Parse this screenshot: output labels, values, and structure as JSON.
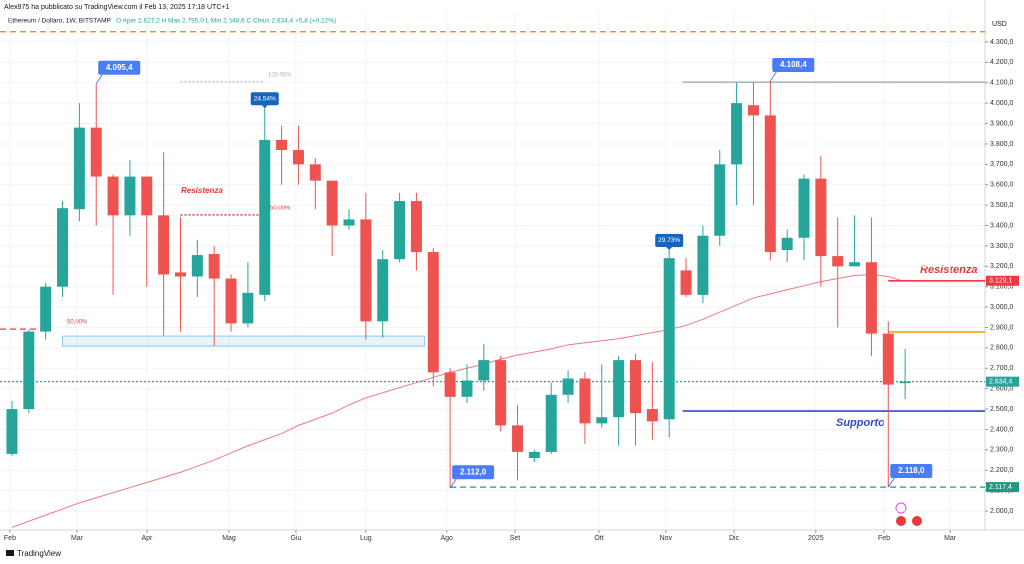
{
  "header": {
    "author": "Alex975 ha pubblicato su TradingView.com il Feb 13, 2025 17:18 UTC+1",
    "footer": "TradingView"
  },
  "chart_data": {
    "type": "candlestick",
    "title": "Ethereum / Dollaro, 1W, BITSTAMP",
    "subtitle": "O  Aper 2.627,2  H  Max 2.795,0  L  Min 2.548,6  C  Chius 2.634,4  +5,8 (+0,22%)",
    "y_unit": "USD",
    "x": [
      0,
      1,
      2,
      3,
      4,
      5,
      6,
      7,
      8,
      9,
      10,
      11,
      12,
      13,
      14,
      15,
      16,
      17,
      18,
      19,
      20,
      21,
      22,
      23,
      24,
      25,
      26,
      27,
      28,
      29,
      30,
      31,
      32,
      33,
      34,
      35,
      36,
      37,
      38,
      39,
      40,
      41,
      42,
      43,
      44,
      45,
      46,
      47,
      48,
      49,
      50,
      51,
      52,
      53
    ],
    "open": [
      2280,
      2500,
      2880,
      3100,
      3480,
      3880,
      3640,
      3450,
      3640,
      3450,
      3170,
      3150,
      3260,
      3140,
      2920,
      3060,
      3820,
      3770,
      3700,
      3620,
      3400,
      3430,
      2930,
      3235,
      3520,
      3270,
      2680,
      2560,
      2640,
      2740,
      2420,
      2260,
      2290,
      2570,
      2650,
      2430,
      2460,
      2740,
      2500,
      2450,
      3180,
      3060,
      3350,
      3700,
      3990,
      3940,
      3280,
      3340,
      3630,
      3250,
      3200,
      3220,
      2870,
      2627.2
    ],
    "high": [
      2540,
      2890,
      3120,
      3520,
      4000,
      4095.4,
      3650,
      3720,
      3640,
      3760,
      3440,
      3330,
      3300,
      3160,
      3220,
      3975,
      3890,
      3890,
      3730,
      3620,
      3480,
      3560,
      3280,
      3560,
      3560,
      3290,
      2700,
      2720,
      2820,
      2760,
      2520,
      2300,
      2630,
      2690,
      2680,
      2720,
      2760,
      2770,
      2730,
      3280,
      3240,
      3400,
      3770,
      4100,
      4100,
      4108.4,
      3380,
      3650,
      3740,
      3440,
      3450,
      3440,
      2930,
      2795
    ],
    "low": [
      2270,
      2480,
      2840,
      3050,
      3420,
      3400,
      3060,
      3350,
      3100,
      2860,
      2880,
      3050,
      2810,
      2880,
      2900,
      3030,
      3600,
      3600,
      3480,
      3250,
      3380,
      2840,
      2850,
      3220,
      3180,
      2610,
      2112,
      2530,
      2590,
      2390,
      2150,
      2240,
      2280,
      2530,
      2330,
      2410,
      2320,
      2320,
      2350,
      2360,
      3050,
      3020,
      3300,
      3500,
      3500,
      3230,
      3220,
      3230,
      3100,
      2900,
      3200,
      2760,
      2118,
      2548.6
    ],
    "close": [
      2500,
      2880,
      3100,
      3485,
      3880,
      3640,
      3450,
      3640,
      3450,
      3160,
      3150,
      3255,
      3140,
      2920,
      3070,
      3820,
      3770,
      3700,
      3620,
      3400,
      3430,
      2930,
      3235,
      3520,
      3270,
      2680,
      2560,
      2640,
      2740,
      2420,
      2290,
      2290,
      2570,
      2650,
      2430,
      2460,
      2740,
      2480,
      2440,
      3240,
      3060,
      3350,
      3700,
      4000,
      3940,
      3270,
      3340,
      3630,
      3250,
      3200,
      3220,
      2870,
      2620,
      2634.4
    ],
    "up_color": "#26a69a",
    "down_color": "#ef5350",
    "ma": {
      "color": "#f07a7a",
      "values": [
        1920,
        1950,
        1980,
        2010,
        2040,
        2065,
        2090,
        2115,
        2140,
        2165,
        2190,
        2220,
        2250,
        2285,
        2320,
        2350,
        2380,
        2420,
        2450,
        2480,
        2520,
        2555,
        2580,
        2605,
        2630,
        2655,
        2680,
        2700,
        2720,
        2745,
        2765,
        2780,
        2795,
        2815,
        2825,
        2835,
        2845,
        2860,
        2875,
        2890,
        2910,
        2940,
        2975,
        3010,
        3045,
        3065,
        3085,
        3105,
        3125,
        3140,
        3155,
        3160,
        3150,
        3125
      ]
    },
    "xlim": [
      -0.71,
      57.74
    ],
    "ylim": [
      1907,
      4447
    ],
    "xticks": [
      {
        "value": -0.12,
        "label": "Feb"
      },
      {
        "value": 3.86,
        "label": "Mar"
      },
      {
        "value": 8.01,
        "label": "Apr"
      },
      {
        "value": 12.88,
        "label": "Mag"
      },
      {
        "value": 16.85,
        "label": "Giu"
      },
      {
        "value": 21.0,
        "label": "Lug"
      },
      {
        "value": 25.8,
        "label": "Ago"
      },
      {
        "value": 29.85,
        "label": "Set"
      },
      {
        "value": 34.84,
        "label": "Ott"
      },
      {
        "value": 38.8,
        "label": "Nov"
      },
      {
        "value": 42.85,
        "label": "Dic"
      },
      {
        "value": 47.7,
        "label": "2025"
      },
      {
        "value": 51.75,
        "label": "Feb"
      },
      {
        "value": 55.67,
        "label": "Mar"
      }
    ],
    "yticks": [
      {
        "value": 2000,
        "label": "2.000,0"
      },
      {
        "value": 2100,
        "label": "2.100,0"
      },
      {
        "value": 2200,
        "label": "2.200,0"
      },
      {
        "value": 2300,
        "label": "2.300,0"
      },
      {
        "value": 2400,
        "label": "2.400,0"
      },
      {
        "value": 2500,
        "label": "2.500,0"
      },
      {
        "value": 2600,
        "label": "2.600,0"
      },
      {
        "value": 2700,
        "label": "2.700,0"
      },
      {
        "value": 2800,
        "label": "2.800,0"
      },
      {
        "value": 2900,
        "label": "2.900,0"
      },
      {
        "value": 3000,
        "label": "3.000,0"
      },
      {
        "value": 3100,
        "label": "3.100,0"
      },
      {
        "value": 3200,
        "label": "3.200,0"
      },
      {
        "value": 3300,
        "label": "3.300,0"
      },
      {
        "value": 3400,
        "label": "3.400,0"
      },
      {
        "value": 3500,
        "label": "3.500,0"
      },
      {
        "value": 3600,
        "label": "3.600,0"
      },
      {
        "value": 3700,
        "label": "3.700,0"
      },
      {
        "value": 3800,
        "label": "3.800,0"
      },
      {
        "value": 3900,
        "label": "3.900,0"
      },
      {
        "value": 4000,
        "label": "4.000,0"
      },
      {
        "value": 4100,
        "label": "4.100,0"
      },
      {
        "value": 4200,
        "label": "4.200,0"
      },
      {
        "value": 4300,
        "label": "4.300,0"
      }
    ],
    "grid": true,
    "zone": {
      "top": 2858,
      "bottom": 2809,
      "from": 3,
      "to": 24.5,
      "color": "#5bb8e8"
    },
    "lines": [
      {
        "value": 4350,
        "color": "#f57c00",
        "style": "dashed",
        "from": -0.71
      },
      {
        "value": 4103,
        "color": "#b2b5be",
        "style": "solid",
        "from": 39.8
      },
      {
        "value": 4104,
        "color": "#c3c6ce",
        "style": "dotted",
        "from": 10,
        "to": 15
      },
      {
        "value": 3452,
        "color": "#d32f2f",
        "style": "dotted",
        "from": 10,
        "to": 15
      },
      {
        "value": 2892,
        "color": "#f23645",
        "style": "dashed",
        "from": -0.71,
        "to": 1.9
      },
      {
        "value": 2878,
        "color": "#f7a21b",
        "style": "solid",
        "from": 52
      },
      {
        "value": 2490,
        "color": "#3149c0",
        "style": "solid",
        "from": 39.8
      },
      {
        "value": 3129.1,
        "label": "3.129,1",
        "color": "#f23645",
        "style": "solid",
        "from": 52
      },
      {
        "value": 2634.4,
        "label": "2.634,4",
        "color": "#26a69a",
        "style": "dotted",
        "from": -0.71
      },
      {
        "value": 2117.4,
        "label": "2.117,4",
        "color": "#22997e",
        "style": "dashed",
        "from": 26
      }
    ],
    "callouts": [
      {
        "label": "4.095,4",
        "value": 4095.4,
        "x": 5
      },
      {
        "label": "4.108,4",
        "value": 4108.4,
        "x": 45
      },
      {
        "label": "2.112,0",
        "value": 2112.0,
        "x": 26
      },
      {
        "label": "2.118,0",
        "value": 2118.0,
        "x": 52
      }
    ],
    "pct_callouts": [
      {
        "label": "24.54%",
        "x": 15
      },
      {
        "label": "29.73%",
        "x": 39
      }
    ],
    "annotations": [
      "Resistenza",
      "Resistenza",
      "Supporto",
      "50,00%",
      "50,00%",
      "100,00%"
    ]
  }
}
